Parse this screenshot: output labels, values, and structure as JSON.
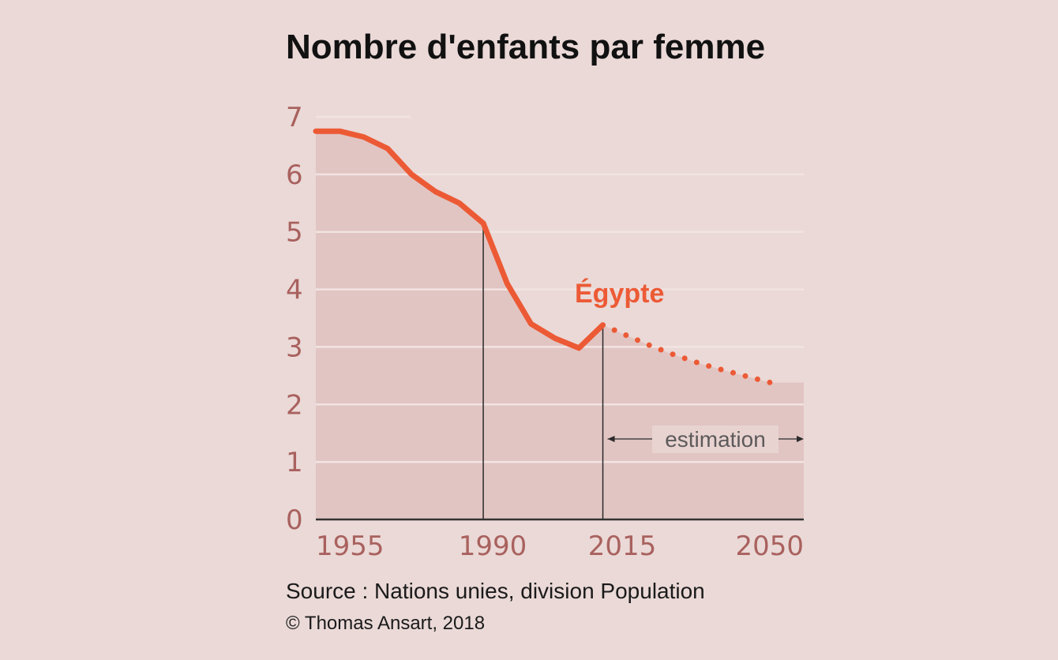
{
  "colors": {
    "background": "#ead9d7",
    "area_fill": "#e1c5c3",
    "line": "#ec5a35",
    "tick_text": "#a9615e",
    "grid": "#f1e4e2",
    "axis": "#333333",
    "marker": "#2a2a2a"
  },
  "chart_data": {
    "type": "line",
    "title": "Nombre d'enfants par femme",
    "xlabel": "",
    "ylabel": "",
    "xlim": [
      1950,
      2052
    ],
    "ylim": [
      0,
      7
    ],
    "x_ticks": [
      "1955",
      "1990",
      "2015",
      "2050"
    ],
    "y_ticks": [
      "0",
      "1",
      "2",
      "3",
      "4",
      "5",
      "6",
      "7"
    ],
    "grid": true,
    "area_fill": true,
    "series": [
      {
        "name": "Égypte",
        "style": "solid",
        "points": [
          [
            1950,
            6.75
          ],
          [
            1955,
            6.75
          ],
          [
            1960,
            6.65
          ],
          [
            1965,
            6.45
          ],
          [
            1970,
            6.0
          ],
          [
            1975,
            5.7
          ],
          [
            1980,
            5.5
          ],
          [
            1985,
            5.15
          ],
          [
            1990,
            4.1
          ],
          [
            1995,
            3.4
          ],
          [
            2000,
            3.15
          ],
          [
            2005,
            2.98
          ],
          [
            2010,
            3.38
          ]
        ]
      },
      {
        "name": "",
        "style": "dotted",
        "points": [
          [
            2010,
            3.38
          ],
          [
            2015,
            3.2
          ],
          [
            2020,
            3.02
          ],
          [
            2025,
            2.86
          ],
          [
            2030,
            2.72
          ],
          [
            2035,
            2.6
          ],
          [
            2040,
            2.49
          ],
          [
            2045,
            2.38
          ]
        ]
      }
    ],
    "annotations": {
      "series_label": "Égypte",
      "markers": [
        1985,
        2010
      ],
      "estimation": "estimation"
    }
  },
  "footer": {
    "source": "Source : Nations unies, division Population",
    "copyright": "© Thomas Ansart, 2018"
  }
}
